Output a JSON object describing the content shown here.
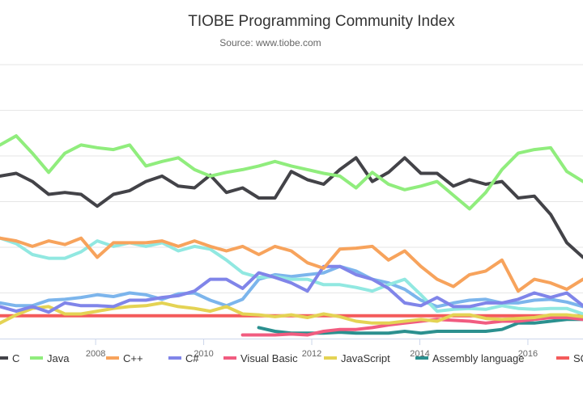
{
  "chart_data": {
    "type": "line",
    "title": "TIOBE Programming Community Index",
    "subtitle": "Source: www.tiobe.com",
    "xlabel": "",
    "ylabel": "",
    "xlim": [
      2006.23,
      2017.02
    ],
    "ylim": [
      0,
      30
    ],
    "x_ticks": [
      "2008",
      "2010",
      "2012",
      "2014",
      "2016"
    ],
    "grid": true,
    "legend_position": "bottom",
    "x": [
      2006.23,
      2006.53,
      2006.83,
      2007.13,
      2007.43,
      2007.73,
      2008.03,
      2008.33,
      2008.63,
      2008.93,
      2009.23,
      2009.53,
      2009.83,
      2010.12,
      2010.42,
      2010.72,
      2011.02,
      2011.32,
      2011.62,
      2011.92,
      2012.22,
      2012.52,
      2012.82,
      2013.12,
      2013.42,
      2013.72,
      2014.02,
      2014.32,
      2014.62,
      2014.92,
      2015.22,
      2015.52,
      2015.82,
      2016.12,
      2016.42,
      2016.72,
      2017.02
    ],
    "series": [
      {
        "name": "C",
        "color": "#434348",
        "values": [
          17.8,
          18.1,
          17.2,
          15.8,
          16.0,
          15.8,
          14.5,
          15.8,
          16.2,
          17.2,
          17.8,
          16.7,
          16.5,
          17.9,
          16.0,
          16.5,
          15.4,
          15.4,
          18.3,
          17.4,
          16.9,
          18.5,
          19.8,
          17.2,
          18.2,
          19.8,
          18.1,
          18.1,
          16.7,
          17.4,
          16.9,
          17.2,
          15.4,
          15.6,
          13.6,
          10.5,
          8.9
        ]
      },
      {
        "name": "Java",
        "color": "#90ed7d",
        "values": [
          21.2,
          22.2,
          20.3,
          18.2,
          20.3,
          21.2,
          20.9,
          20.7,
          21.2,
          18.9,
          19.4,
          19.8,
          18.5,
          17.8,
          18.2,
          18.5,
          18.9,
          19.4,
          18.9,
          18.5,
          18.1,
          17.8,
          16.5,
          18.2,
          16.9,
          16.3,
          16.7,
          17.2,
          15.7,
          14.2,
          16.0,
          18.5,
          20.3,
          20.7,
          20.9,
          18.3,
          17.2
        ]
      },
      {
        "name": "C++",
        "color": "#f7a35c",
        "values": [
          11.0,
          10.7,
          10.1,
          10.7,
          10.3,
          11.0,
          8.9,
          10.5,
          10.5,
          10.5,
          10.7,
          10.1,
          10.7,
          10.1,
          9.6,
          10.1,
          9.2,
          10.1,
          9.6,
          8.3,
          7.7,
          9.8,
          9.9,
          10.1,
          8.6,
          9.6,
          7.9,
          6.5,
          5.7,
          7.0,
          7.4,
          8.6,
          5.2,
          6.5,
          6.1,
          5.4,
          6.5
        ]
      },
      {
        "name": "C#",
        "color": "#8085e9",
        "values": [
          3.5,
          3.0,
          3.5,
          2.9,
          3.9,
          3.6,
          3.6,
          3.5,
          4.2,
          4.2,
          4.5,
          4.7,
          5.2,
          6.5,
          6.5,
          5.5,
          7.2,
          6.7,
          6.1,
          5.2,
          7.9,
          7.9,
          7.0,
          6.5,
          5.5,
          3.9,
          3.6,
          4.5,
          3.5,
          3.5,
          3.9,
          3.9,
          4.3,
          5.0,
          4.5,
          5.0,
          3.6
        ]
      },
      {
        "name": "Visual Basic",
        "color": "#f15c80",
        "values": [
          null,
          null,
          null,
          null,
          null,
          null,
          null,
          null,
          null,
          null,
          null,
          null,
          null,
          null,
          null,
          0.4,
          0.4,
          0.4,
          0.5,
          0.4,
          0.8,
          1.0,
          1.0,
          1.2,
          1.5,
          1.7,
          1.9,
          2.1,
          2.0,
          1.9,
          1.7,
          1.9,
          1.9,
          2.1,
          2.3,
          2.3,
          2.1
        ]
      },
      {
        "name": "JavaScript",
        "color": "#e4d354",
        "values": [
          1.7,
          2.6,
          3.3,
          3.5,
          2.7,
          2.7,
          3.0,
          3.3,
          3.5,
          3.6,
          3.9,
          3.5,
          3.3,
          3.0,
          3.5,
          2.7,
          2.6,
          2.4,
          2.6,
          2.3,
          2.7,
          2.4,
          1.9,
          1.7,
          1.7,
          1.9,
          2.1,
          1.9,
          2.6,
          2.6,
          2.2,
          2.1,
          2.2,
          2.3,
          2.6,
          2.6,
          2.4
        ]
      },
      {
        "name": "Assembly language",
        "color": "#2b908f",
        "values": [
          null,
          null,
          null,
          null,
          null,
          null,
          null,
          null,
          null,
          null,
          null,
          null,
          null,
          null,
          null,
          null,
          1.2,
          0.8,
          0.6,
          0.6,
          0.6,
          0.7,
          0.6,
          0.6,
          0.6,
          0.8,
          0.6,
          0.8,
          0.8,
          0.8,
          0.8,
          1.0,
          1.7,
          1.7,
          1.9,
          2.1,
          2.1
        ]
      },
      {
        "name": "SQL",
        "color": "#f45b5b",
        "values": [
          2.5,
          2.5,
          2.5,
          2.5,
          2.5,
          2.5,
          2.5,
          2.5,
          2.5,
          2.5,
          2.5,
          2.5,
          2.5,
          2.5,
          2.5,
          2.5,
          2.5,
          2.5,
          2.5,
          2.5,
          2.5,
          2.5,
          2.5,
          2.5,
          2.5,
          2.5,
          2.5,
          2.5,
          2.5,
          2.5,
          2.5,
          2.5,
          2.5,
          2.5,
          2.5,
          2.5,
          2.5
        ]
      },
      {
        "color": "#91e8e1",
        "values": [
          11.0,
          10.4,
          9.2,
          8.8,
          8.8,
          9.5,
          10.7,
          10.1,
          10.5,
          10.1,
          10.5,
          9.6,
          10.1,
          9.8,
          8.6,
          7.2,
          6.7,
          6.8,
          6.5,
          6.5,
          5.9,
          5.9,
          5.6,
          5.2,
          5.9,
          6.5,
          4.8,
          3.0,
          3.2,
          3.3,
          3.2,
          3.6,
          3.3,
          3.2,
          3.3,
          3.3,
          2.7
        ]
      },
      {
        "color": "#7cb5ec",
        "values": [
          3.9,
          3.6,
          3.6,
          4.2,
          4.3,
          4.5,
          4.8,
          4.6,
          5.0,
          4.8,
          4.3,
          4.9,
          5.0,
          4.2,
          3.6,
          4.3,
          6.5,
          7.0,
          6.8,
          7.0,
          7.2,
          7.9,
          7.4,
          6.5,
          6.1,
          5.4,
          4.2,
          3.5,
          3.9,
          4.2,
          4.3,
          3.9,
          3.9,
          4.2,
          4.3,
          4.0,
          3.5
        ]
      }
    ]
  }
}
